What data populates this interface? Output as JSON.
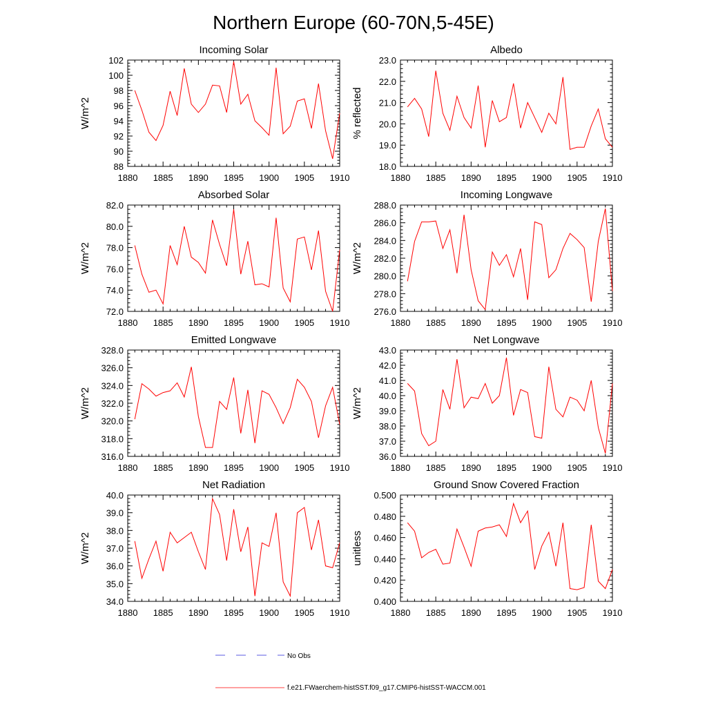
{
  "page_title": "Northern Europe (60-70N,5-45E)",
  "legend": [
    {
      "label": "No Obs",
      "color": "#5a5ae0",
      "dash": true
    },
    {
      "label": "f.e21.FWaerchem-histSST.f09_g17.CMIP6-histSST-WACCM.001",
      "color": "#ff4040",
      "dash": false
    }
  ],
  "colors": {
    "series": "#ff0000",
    "axis": "#000000"
  },
  "chart_data": [
    {
      "type": "line",
      "title": "Incoming Solar",
      "ylabel": "W/m^2",
      "xlim": [
        1880,
        1910
      ],
      "ylim": [
        88,
        102
      ],
      "xticks": [
        1880,
        1885,
        1890,
        1895,
        1900,
        1905,
        1910
      ],
      "yticks": [
        "88",
        "90",
        "92",
        "94",
        "96",
        "98",
        "100",
        "102"
      ],
      "x": [
        1881,
        1882,
        1883,
        1884,
        1885,
        1886,
        1887,
        1888,
        1889,
        1890,
        1891,
        1892,
        1893,
        1894,
        1895,
        1896,
        1897,
        1898,
        1899,
        1900,
        1901,
        1902,
        1903,
        1904,
        1905,
        1906,
        1907,
        1908,
        1909,
        1910
      ],
      "series": [
        {
          "values": [
            98.0,
            95.4,
            92.5,
            91.4,
            93.4,
            97.9,
            94.7,
            100.9,
            96.2,
            95.1,
            96.2,
            98.7,
            98.6,
            95.1,
            101.8,
            96.2,
            97.5,
            94.0,
            93.1,
            92.1,
            101.0,
            92.3,
            93.3,
            96.6,
            96.9,
            93.0,
            98.9,
            92.7,
            89.0,
            95.0
          ]
        }
      ]
    },
    {
      "type": "line",
      "title": "Albedo",
      "ylabel": "% reflected",
      "xlim": [
        1880,
        1910
      ],
      "ylim": [
        18,
        23
      ],
      "xticks": [
        1880,
        1885,
        1890,
        1895,
        1900,
        1905,
        1910
      ],
      "yticks": [
        "18.0",
        "19.0",
        "20.0",
        "21.0",
        "22.0",
        "23.0"
      ],
      "x": [
        1881,
        1882,
        1883,
        1884,
        1885,
        1886,
        1887,
        1888,
        1889,
        1890,
        1891,
        1892,
        1893,
        1894,
        1895,
        1896,
        1897,
        1898,
        1899,
        1900,
        1901,
        1902,
        1903,
        1904,
        1905,
        1906,
        1907,
        1908,
        1909,
        1910
      ],
      "series": [
        {
          "values": [
            20.8,
            21.2,
            20.7,
            19.4,
            22.5,
            20.5,
            19.7,
            21.3,
            20.3,
            19.8,
            21.8,
            18.9,
            21.1,
            20.1,
            20.3,
            21.9,
            19.8,
            21.0,
            20.3,
            19.6,
            20.5,
            20.0,
            22.2,
            18.8,
            18.9,
            18.9,
            19.9,
            20.7,
            19.3,
            18.9
          ]
        }
      ]
    },
    {
      "type": "line",
      "title": "Absorbed Solar",
      "ylabel": "W/m^2",
      "xlim": [
        1880,
        1910
      ],
      "ylim": [
        72,
        82
      ],
      "xticks": [
        1880,
        1885,
        1890,
        1895,
        1900,
        1905,
        1910
      ],
      "yticks": [
        "72.0",
        "74.0",
        "76.0",
        "78.0",
        "80.0",
        "82.0"
      ],
      "x": [
        1881,
        1882,
        1883,
        1884,
        1885,
        1886,
        1887,
        1888,
        1889,
        1890,
        1891,
        1892,
        1893,
        1894,
        1895,
        1896,
        1897,
        1898,
        1899,
        1900,
        1901,
        1902,
        1903,
        1904,
        1905,
        1906,
        1907,
        1908,
        1909,
        1910
      ],
      "series": [
        {
          "values": [
            78.2,
            75.5,
            73.8,
            74.0,
            72.7,
            78.2,
            76.4,
            80.0,
            77.1,
            76.6,
            75.6,
            80.6,
            78.3,
            76.3,
            81.6,
            75.5,
            78.6,
            74.5,
            74.6,
            74.3,
            80.8,
            74.2,
            72.9,
            78.8,
            79.0,
            75.9,
            79.6,
            73.9,
            72.0,
            77.8
          ]
        }
      ]
    },
    {
      "type": "line",
      "title": "Incoming Longwave",
      "ylabel": "W/m^2",
      "xlim": [
        1880,
        1910
      ],
      "ylim": [
        276,
        288
      ],
      "xticks": [
        1880,
        1885,
        1890,
        1895,
        1900,
        1905,
        1910
      ],
      "yticks": [
        "276.0",
        "278.0",
        "280.0",
        "282.0",
        "284.0",
        "286.0",
        "288.0"
      ],
      "x": [
        1881,
        1882,
        1883,
        1884,
        1885,
        1886,
        1887,
        1888,
        1889,
        1890,
        1891,
        1892,
        1893,
        1894,
        1895,
        1896,
        1897,
        1898,
        1899,
        1900,
        1901,
        1902,
        1903,
        1904,
        1905,
        1906,
        1907,
        1908,
        1909,
        1910
      ],
      "series": [
        {
          "values": [
            279.4,
            283.9,
            286.1,
            286.1,
            286.2,
            283.1,
            285.2,
            280.3,
            286.9,
            280.7,
            277.2,
            276.2,
            282.7,
            281.2,
            282.4,
            279.9,
            283.1,
            277.3,
            286.1,
            285.8,
            279.8,
            280.7,
            283.1,
            284.8,
            284.1,
            283.2,
            277.1,
            283.9,
            287.6,
            278.3
          ]
        }
      ]
    },
    {
      "type": "line",
      "title": "Emitted Longwave",
      "ylabel": "W/m^2",
      "xlim": [
        1880,
        1910
      ],
      "ylim": [
        316,
        328
      ],
      "xticks": [
        1880,
        1885,
        1890,
        1895,
        1900,
        1905,
        1910
      ],
      "yticks": [
        "316.0",
        "318.0",
        "320.0",
        "322.0",
        "324.0",
        "326.0",
        "328.0"
      ],
      "x": [
        1881,
        1882,
        1883,
        1884,
        1885,
        1886,
        1887,
        1888,
        1889,
        1890,
        1891,
        1892,
        1893,
        1894,
        1895,
        1896,
        1897,
        1898,
        1899,
        1900,
        1901,
        1902,
        1903,
        1904,
        1905,
        1906,
        1907,
        1908,
        1909,
        1910
      ],
      "series": [
        {
          "values": [
            320.2,
            324.2,
            323.6,
            322.8,
            323.2,
            323.4,
            324.3,
            322.7,
            326.1,
            320.5,
            317.0,
            317.0,
            322.2,
            321.3,
            324.9,
            318.6,
            323.5,
            317.5,
            323.4,
            323.0,
            321.5,
            319.7,
            321.5,
            324.7,
            323.8,
            322.2,
            318.1,
            321.7,
            323.8,
            319.6
          ]
        }
      ]
    },
    {
      "type": "line",
      "title": "Net Longwave",
      "ylabel": "W/m^2",
      "xlim": [
        1880,
        1910
      ],
      "ylim": [
        36,
        43
      ],
      "xticks": [
        1880,
        1885,
        1890,
        1895,
        1900,
        1905,
        1910
      ],
      "yticks": [
        "36.0",
        "37.0",
        "38.0",
        "39.0",
        "40.0",
        "41.0",
        "42.0",
        "43.0"
      ],
      "x": [
        1881,
        1882,
        1883,
        1884,
        1885,
        1886,
        1887,
        1888,
        1889,
        1890,
        1891,
        1892,
        1893,
        1894,
        1895,
        1896,
        1897,
        1898,
        1899,
        1900,
        1901,
        1902,
        1903,
        1904,
        1905,
        1906,
        1907,
        1908,
        1909,
        1910
      ],
      "series": [
        {
          "values": [
            40.8,
            40.3,
            37.5,
            36.7,
            37.0,
            40.4,
            39.1,
            42.4,
            39.2,
            39.9,
            39.8,
            40.8,
            39.5,
            40.0,
            42.5,
            38.7,
            40.4,
            40.2,
            37.3,
            37.2,
            41.9,
            39.1,
            38.6,
            39.9,
            39.7,
            39.0,
            41.0,
            37.9,
            36.2,
            40.8
          ]
        }
      ]
    },
    {
      "type": "line",
      "title": "Net Radiation",
      "ylabel": "W/m^2",
      "xlim": [
        1880,
        1910
      ],
      "ylim": [
        34,
        40
      ],
      "xticks": [
        1880,
        1885,
        1890,
        1895,
        1900,
        1905,
        1910
      ],
      "yticks": [
        "34.0",
        "35.0",
        "36.0",
        "37.0",
        "38.0",
        "39.0",
        "40.0"
      ],
      "x": [
        1881,
        1882,
        1883,
        1884,
        1885,
        1886,
        1887,
        1888,
        1889,
        1890,
        1891,
        1892,
        1893,
        1894,
        1895,
        1896,
        1897,
        1898,
        1899,
        1900,
        1901,
        1902,
        1903,
        1904,
        1905,
        1906,
        1907,
        1908,
        1909,
        1910
      ],
      "series": [
        {
          "values": [
            37.4,
            35.3,
            36.4,
            37.4,
            35.7,
            37.9,
            37.3,
            37.6,
            37.9,
            36.8,
            35.8,
            39.8,
            38.9,
            36.3,
            39.2,
            36.8,
            38.2,
            34.3,
            37.3,
            37.1,
            39.0,
            35.1,
            34.3,
            39.0,
            39.3,
            36.9,
            38.6,
            36.0,
            35.9,
            37.3
          ]
        }
      ]
    },
    {
      "type": "line",
      "title": "Ground Snow Covered Fraction",
      "ylabel": "unitless",
      "xlim": [
        1880,
        1910
      ],
      "ylim": [
        0.4,
        0.5
      ],
      "xticks": [
        1880,
        1885,
        1890,
        1895,
        1900,
        1905,
        1910
      ],
      "yticks": [
        "0.400",
        "0.420",
        "0.440",
        "0.460",
        "0.480",
        "0.500"
      ],
      "x": [
        1881,
        1882,
        1883,
        1884,
        1885,
        1886,
        1887,
        1888,
        1889,
        1890,
        1891,
        1892,
        1893,
        1894,
        1895,
        1896,
        1897,
        1898,
        1899,
        1900,
        1901,
        1902,
        1903,
        1904,
        1905,
        1906,
        1907,
        1908,
        1909,
        1910
      ],
      "series": [
        {
          "values": [
            0.474,
            0.466,
            0.441,
            0.446,
            0.449,
            0.435,
            0.436,
            0.468,
            0.451,
            0.433,
            0.466,
            0.469,
            0.47,
            0.472,
            0.461,
            0.492,
            0.474,
            0.485,
            0.43,
            0.452,
            0.465,
            0.433,
            0.474,
            0.412,
            0.411,
            0.413,
            0.472,
            0.419,
            0.412,
            0.43
          ]
        }
      ]
    }
  ]
}
